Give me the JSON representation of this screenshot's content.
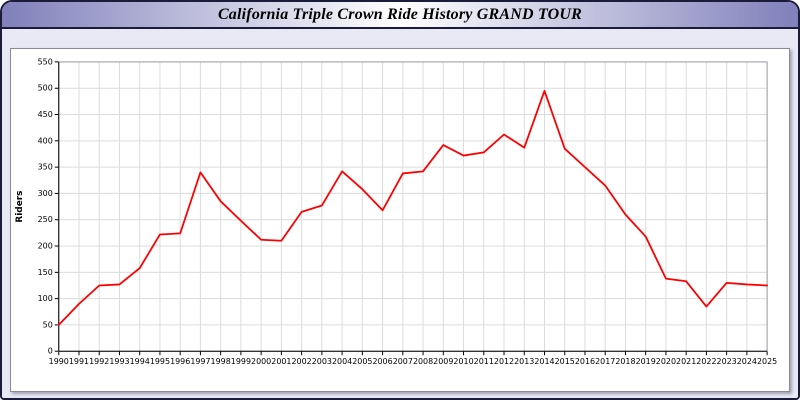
{
  "window": {
    "title": "California Triple Crown Ride History GRAND TOUR"
  },
  "colors": {
    "page_bg": "#e9e9f6",
    "border": "#1b1b3a",
    "titlebar_edge": "#8080bb",
    "titlebar_center": "#ffffff",
    "grid": "#dcdcdc",
    "axis": "#000000",
    "line": "#ff0000"
  },
  "chart_data": {
    "type": "line",
    "title": "California Triple Crown Ride History GRAND TOUR",
    "xlabel": "",
    "ylabel": "Riders",
    "ylim": [
      0,
      550
    ],
    "ytick_step": 50,
    "grid": true,
    "legend_position": "none",
    "line_color": "#ff0000",
    "categories": [
      "1990",
      "1991",
      "1992",
      "1993",
      "1994",
      "1995",
      "1996",
      "1997",
      "1998",
      "1999",
      "2000",
      "2001",
      "2002",
      "2003",
      "2004",
      "2005",
      "2006",
      "2007",
      "2008",
      "2009",
      "2010",
      "2011",
      "2012",
      "2013",
      "2014",
      "2015",
      "2016",
      "2017",
      "2018",
      "2019",
      "2020",
      "2021",
      "2022",
      "2023",
      "2024",
      "2025"
    ],
    "values": [
      50,
      90,
      125,
      127,
      158,
      222,
      224,
      340,
      285,
      248,
      212,
      210,
      265,
      277,
      342,
      308,
      268,
      338,
      342,
      392,
      372,
      378,
      412,
      387,
      495,
      385,
      350,
      315,
      260,
      218,
      138,
      133,
      85,
      130,
      127,
      125
    ]
  }
}
